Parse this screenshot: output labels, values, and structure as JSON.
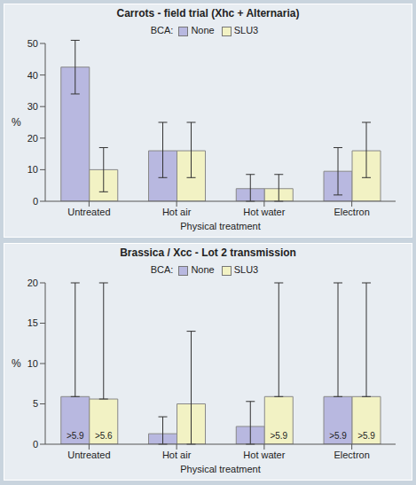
{
  "chart_data": [
    {
      "type": "bar",
      "title": "Carrots - field trial (Xhc + Alternaria)",
      "x_label": "Physical treatment",
      "y_label": "%",
      "legend_title": "BCA:",
      "legend": "top",
      "grid": false,
      "categories": [
        "Untreated",
        "Hot air",
        "Hot water",
        "Electron"
      ],
      "ylim": [
        0,
        50
      ],
      "yticks": [
        0,
        10,
        20,
        30,
        40,
        50
      ],
      "series": [
        {
          "name": "None",
          "color": "#b8b8e0",
          "values": [
            42.5,
            16,
            4,
            9.5
          ],
          "errors": [
            [
              34,
              51
            ],
            [
              7.5,
              25
            ],
            [
              0,
              8.5
            ],
            [
              2,
              17
            ]
          ]
        },
        {
          "name": "SLU3",
          "color": "#f2f2c4",
          "values": [
            10,
            16,
            4,
            16
          ],
          "errors": [
            [
              3,
              17
            ],
            [
              7.5,
              25
            ],
            [
              0,
              8.5
            ],
            [
              7.5,
              25
            ]
          ]
        }
      ]
    },
    {
      "type": "bar",
      "title": "Brassica / Xcc - Lot 2 transmission",
      "x_label": "Physical treatment",
      "y_label": "%",
      "legend_title": "BCA:",
      "legend": "top",
      "grid": false,
      "categories": [
        "Untreated",
        "Hot air",
        "Hot water",
        "Electron"
      ],
      "ylim": [
        0,
        20
      ],
      "yticks": [
        0,
        5,
        10,
        15,
        20
      ],
      "series": [
        {
          "name": "None",
          "color": "#b8b8e0",
          "values": [
            5.9,
            1.3,
            2.2,
            5.9
          ],
          "errors": [
            [
              5.9,
              20
            ],
            [
              0,
              3.4
            ],
            [
              0,
              5.3
            ],
            [
              5.9,
              20
            ]
          ],
          "value_labels": [
            ">5.9",
            null,
            null,
            ">5.9"
          ]
        },
        {
          "name": "SLU3",
          "color": "#f2f2c4",
          "values": [
            5.6,
            5,
            5.9,
            5.9
          ],
          "errors": [
            [
              5.6,
              20
            ],
            [
              0,
              14
            ],
            [
              5.9,
              20
            ],
            [
              5.9,
              20
            ]
          ],
          "value_labels": [
            ">5.6",
            null,
            ">5.9",
            ">5.9"
          ]
        }
      ]
    }
  ]
}
